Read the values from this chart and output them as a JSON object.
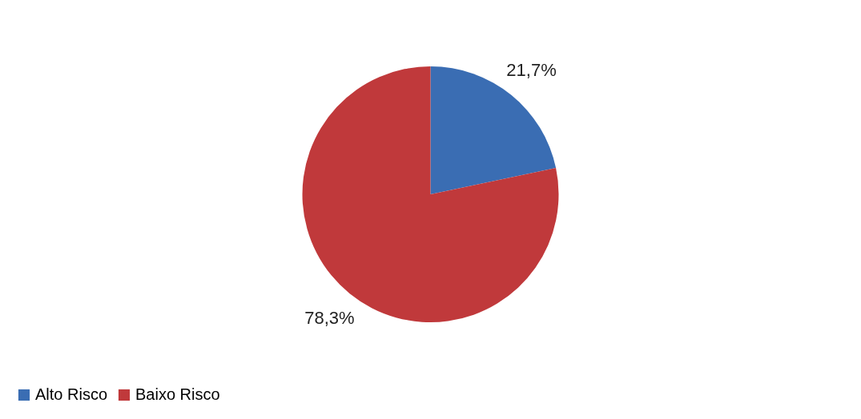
{
  "chart_data": {
    "type": "pie",
    "categories": [
      "Alto Risco",
      "Baixo Risco"
    ],
    "values": [
      21.7,
      78.3
    ],
    "colors": [
      "#3a6db3",
      "#c0393b"
    ],
    "value_labels": [
      "21,7%",
      "78,3%"
    ],
    "legend": "bottom"
  }
}
